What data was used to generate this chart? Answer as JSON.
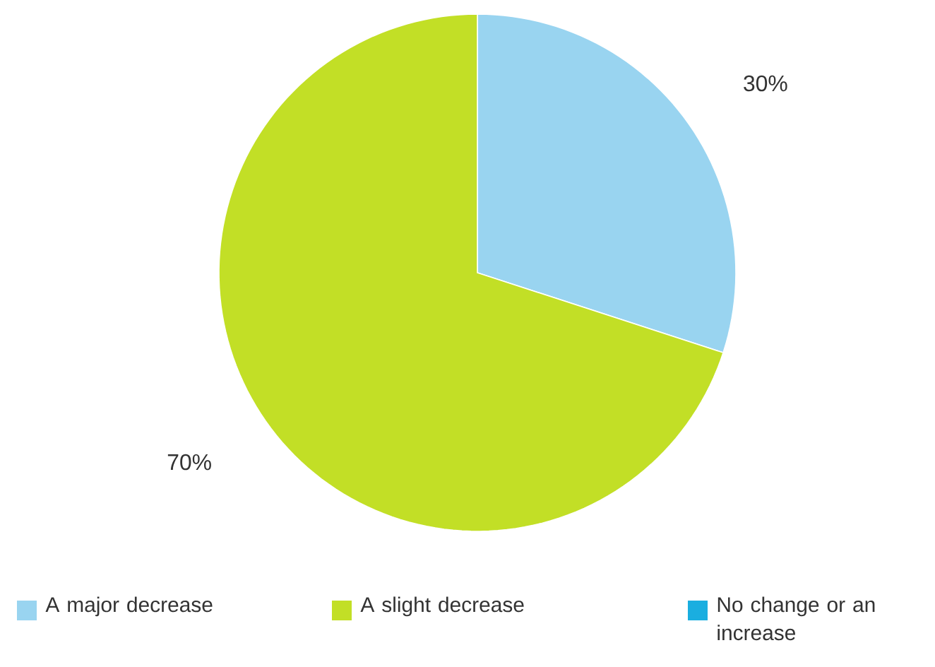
{
  "chart_data": {
    "type": "pie",
    "categories": [
      "A major decrease",
      "A slight decrease",
      "No change or an increase"
    ],
    "values": [
      30,
      70,
      0
    ],
    "colors": [
      "#99d4f0",
      "#c2df26",
      "#1aaee0"
    ],
    "value_labels": [
      "30%",
      "70%",
      null
    ],
    "legend": "bottom"
  }
}
